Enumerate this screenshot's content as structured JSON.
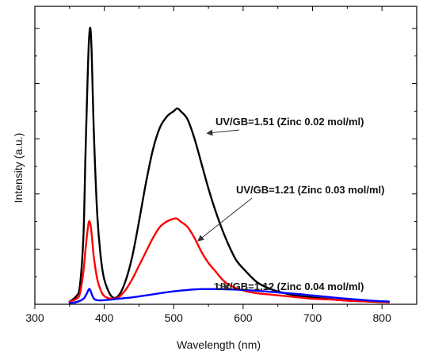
{
  "chart_data": {
    "type": "line",
    "title": "",
    "xlabel": "Wavelength (nm)",
    "ylabel": "Intensity (a.u.)",
    "xlim": [
      300,
      850
    ],
    "ylim": [
      0,
      1.08
    ],
    "xticks": [
      300,
      400,
      500,
      600,
      700,
      800
    ],
    "y_tick_labels_shown": false,
    "grid": false,
    "legend": "none",
    "series": [
      {
        "color": "#000000",
        "x": [
          350,
          360,
          365,
          370,
          373,
          376,
          378,
          380,
          382,
          385,
          390,
          395,
          400,
          410,
          420,
          430,
          440,
          450,
          460,
          470,
          480,
          490,
          500,
          505,
          510,
          520,
          530,
          540,
          550,
          560,
          570,
          580,
          590,
          600,
          620,
          640,
          660,
          680,
          700,
          720,
          740,
          760,
          780,
          800,
          810
        ],
        "y": [
          0.01,
          0.03,
          0.07,
          0.25,
          0.55,
          0.82,
          0.96,
          1.0,
          0.9,
          0.62,
          0.32,
          0.17,
          0.09,
          0.03,
          0.03,
          0.08,
          0.17,
          0.3,
          0.44,
          0.56,
          0.64,
          0.68,
          0.7,
          0.71,
          0.7,
          0.67,
          0.6,
          0.51,
          0.42,
          0.34,
          0.27,
          0.21,
          0.16,
          0.13,
          0.08,
          0.055,
          0.04,
          0.03,
          0.025,
          0.02,
          0.015,
          0.012,
          0.01,
          0.008,
          0.008
        ]
      },
      {
        "color": "#ff0000",
        "x": [
          350,
          360,
          365,
          370,
          373,
          376,
          378,
          380,
          382,
          385,
          390,
          395,
          400,
          410,
          420,
          430,
          440,
          450,
          460,
          470,
          480,
          490,
          500,
          505,
          510,
          520,
          530,
          540,
          550,
          560,
          570,
          580,
          600,
          620,
          640,
          660,
          680,
          700,
          720,
          740,
          760,
          780,
          800,
          810
        ],
        "y": [
          0.01,
          0.02,
          0.04,
          0.12,
          0.2,
          0.27,
          0.3,
          0.29,
          0.25,
          0.17,
          0.09,
          0.05,
          0.03,
          0.02,
          0.025,
          0.05,
          0.09,
          0.14,
          0.19,
          0.24,
          0.28,
          0.3,
          0.31,
          0.31,
          0.3,
          0.28,
          0.24,
          0.19,
          0.15,
          0.12,
          0.09,
          0.07,
          0.05,
          0.04,
          0.035,
          0.03,
          0.025,
          0.02,
          0.018,
          0.015,
          0.012,
          0.01,
          0.008,
          0.007
        ]
      },
      {
        "color": "#0000ff",
        "x": [
          350,
          360,
          370,
          375,
          378,
          380,
          383,
          386,
          390,
          395,
          400,
          410,
          420,
          440,
          460,
          480,
          500,
          520,
          540,
          560,
          580,
          600,
          620,
          640,
          660,
          680,
          700,
          720,
          740,
          760,
          780,
          800,
          810
        ],
        "y": [
          0.005,
          0.008,
          0.02,
          0.04,
          0.055,
          0.05,
          0.03,
          0.018,
          0.015,
          0.014,
          0.015,
          0.017,
          0.02,
          0.025,
          0.032,
          0.04,
          0.047,
          0.052,
          0.055,
          0.055,
          0.054,
          0.052,
          0.049,
          0.045,
          0.041,
          0.037,
          0.032,
          0.027,
          0.022,
          0.018,
          0.014,
          0.011,
          0.01
        ]
      }
    ],
    "annotations": [
      {
        "text": "UV/GB=1.51 (Zinc 0.02 mol/ml)",
        "arrow_to": [
          548,
          0.62
        ]
      },
      {
        "text": "UV/GB=1.21 (Zinc 0.03 mol/ml)",
        "arrow_to": [
          535,
          0.23
        ]
      },
      {
        "text": "UV/GB=1.12 (Zinc 0.04 mol/ml)",
        "arrow_to": [
          580,
          0.058
        ]
      }
    ]
  }
}
